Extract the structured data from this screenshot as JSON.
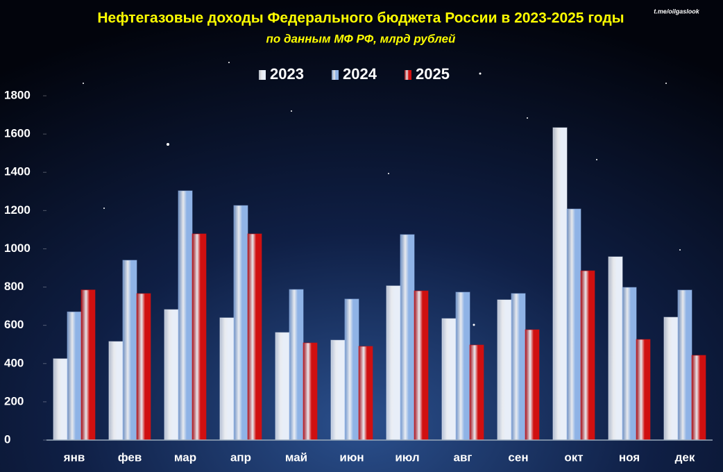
{
  "chart_data": {
    "type": "bar",
    "title": "Нефтегазовые доходы Федерального бюджета России в 2023-2025 годы",
    "subtitle": "по данным МФ РФ, млрд рублей",
    "annotation": "t.me/oilgaslook",
    "categories": [
      "янв",
      "фев",
      "мар",
      "апр",
      "май",
      "июн",
      "июл",
      "авг",
      "сен",
      "окт",
      "ноя",
      "дек"
    ],
    "series": [
      {
        "name": "2023",
        "color": "#e8eef8",
        "values": [
          425,
          515,
          682,
          639,
          562,
          522,
          806,
          635,
          733,
          1633,
          958,
          642
        ]
      },
      {
        "name": "2024",
        "color": "#8fb3e6",
        "values": [
          670,
          940,
          1303,
          1226,
          787,
          737,
          1074,
          773,
          766,
          1208,
          798,
          784
        ]
      },
      {
        "name": "2025",
        "color": "#d01010",
        "values": [
          785,
          766,
          1078,
          1078,
          508,
          490,
          780,
          497,
          577,
          885,
          526,
          443
        ]
      }
    ],
    "ylim": [
      0,
      1800
    ],
    "yticks": [
      0,
      200,
      400,
      600,
      800,
      1000,
      1200,
      1400,
      1600,
      1800
    ],
    "legend": "top"
  }
}
